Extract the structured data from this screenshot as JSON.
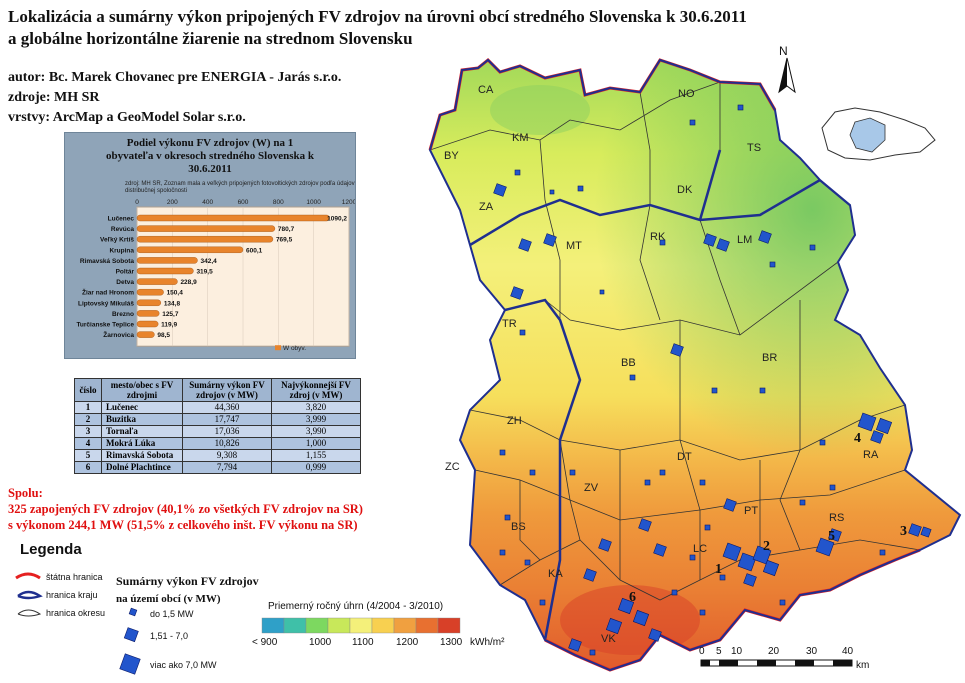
{
  "title": {
    "line1": "Lokalizácia a sumárny výkon pripojených FV zdrojov na úrovni obcí stredného Slovenska k 30.6.2011",
    "line2": "a globálne horizontálne žiarenie na strednom Slovensku"
  },
  "meta": {
    "author": "autor: Bc. Marek Chovanec pre ENERGIA - Jarás s.r.o.",
    "source": "zdroje: MH SR",
    "layers": "vrstvy: ArcMap a GeoModel Solar s.r.o."
  },
  "districts": [
    "CA",
    "NO",
    "KM",
    "BY",
    "TS",
    "ZA",
    "DK",
    "MT",
    "RK",
    "LM",
    "TR",
    "BB",
    "BR",
    "ZH",
    "DT",
    "RA",
    "ZC",
    "ZV",
    "PT",
    "RS",
    "BS",
    "LC",
    "KA",
    "VK"
  ],
  "map_numbers": [
    "1",
    "2",
    "3",
    "4",
    "5",
    "6"
  ],
  "north_label": "N",
  "chart_data": {
    "type": "bar",
    "orientation": "horizontal",
    "title": "Podiel výkonu FV zdrojov (W) na 1 obyvateľa v okresoch stredného Slovenska k 30.6.2011",
    "subtitle": "zdroj: MH SR, Zoznam mala a veľkých pripojených fotovoltických zdrojov podľa údajov distribučnej spoločnosti",
    "categories": [
      "Lučenec",
      "Revúca",
      "Veľký Krtíš",
      "Krupina",
      "Rimavská Sobota",
      "Poltár",
      "Detva",
      "Žiar nad Hronom",
      "Liptovský Mikuláš",
      "Brezno",
      "Turčianske Teplice",
      "Žarnovica"
    ],
    "values": [
      1090.2,
      780.7,
      769.5,
      600.1,
      342.4,
      319.5,
      228.9,
      150.4,
      134.8,
      125.7,
      119.9,
      98.5
    ],
    "value_labels": [
      "1090,2",
      "780,7",
      "769,5",
      "600,1",
      "342,4",
      "319,5",
      "228,9",
      "150,4",
      "134,8",
      "125,7",
      "119,9",
      "98,5"
    ],
    "xlim": [
      0,
      1200
    ],
    "ticks": [
      "0",
      "200",
      "400",
      "600",
      "800",
      "1000",
      "1200"
    ],
    "legend": "W obyv.",
    "bar_color": "#e8842c"
  },
  "table": {
    "headers": [
      "číslo",
      "mesto/obec s FV zdrojmi",
      "Sumárny výkon FV zdrojov (v MW)",
      "Najvýkonnejší FV zdroj (v MW)"
    ],
    "rows": [
      {
        "n": "1",
        "name": "Lučenec",
        "total": "44,360",
        "max": "3,820"
      },
      {
        "n": "2",
        "name": "Buzitka",
        "total": "17,747",
        "max": "3,999"
      },
      {
        "n": "3",
        "name": "Tornaľa",
        "total": "17,036",
        "max": "3,990"
      },
      {
        "n": "4",
        "name": "Mokrá Lúka",
        "total": "10,826",
        "max": "1,000"
      },
      {
        "n": "5",
        "name": "Rimavská Sobota",
        "total": "9,308",
        "max": "1,155"
      },
      {
        "n": "6",
        "name": "Dolné Plachtince",
        "total": "7,794",
        "max": "0,999"
      }
    ]
  },
  "summary": {
    "line1": "Spolu:",
    "line2": "325 zapojených FV zdrojov (40,1% zo všetkých FV zdrojov na SR)",
    "line3": "s výkonom 244,1 MW (51,5% z celkového inšt. FV výkonu na SR)"
  },
  "legend": {
    "title": "Legenda",
    "state_border": "štátna hranica",
    "region_border": "hranica kraju",
    "district_border": "hranica okresu",
    "power_title_line1": "Sumárny výkon FV zdrojov",
    "power_title_line2": "na území obcí (v MW)",
    "size_small": "do 1,5 MW",
    "size_mid": "1,51 - 7,0",
    "size_large": "viac ako 7,0 MW",
    "colors": {
      "border_state": "#e52020",
      "border_region": "#1f2f8f",
      "pv_marker": "#2255cc"
    }
  },
  "irradiation": {
    "title": "Priemerný ročný úhrn (4/2004 - 3/2010)",
    "labels": [
      "< 900",
      "1000",
      "1100",
      "1200",
      "1300"
    ],
    "unit": "kWh/m²",
    "colors": [
      "#2fa0c8",
      "#3fc0a8",
      "#7dd860",
      "#c8e85a",
      "#f4f07a",
      "#f8d050",
      "#f0a040",
      "#e87030",
      "#d84028"
    ]
  },
  "scalebar": {
    "labels": [
      "0",
      "5",
      "10",
      "20",
      "30",
      "40"
    ],
    "unit": "km"
  }
}
